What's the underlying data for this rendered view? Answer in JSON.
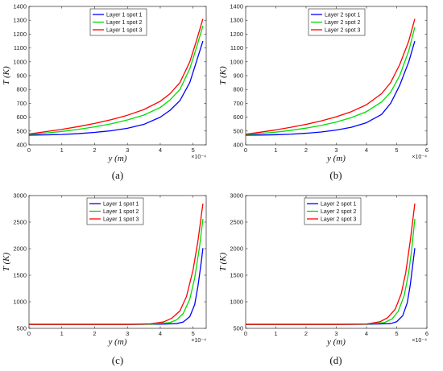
{
  "chart_data": [
    {
      "type": "line",
      "caption": "(a)",
      "xlabel": "y (m)",
      "ylabel": "T (K)",
      "x_multiplier": "×10⁻⁴",
      "xlim": [
        0,
        5.4
      ],
      "ylim": [
        400,
        1400
      ],
      "xticks": [
        0,
        1,
        2,
        3,
        4,
        5
      ],
      "yticks": [
        400,
        500,
        600,
        700,
        800,
        900,
        1000,
        1100,
        1200,
        1300,
        1400
      ],
      "legend_position": "top-center",
      "series": [
        {
          "name": "Layer 1 spot 1",
          "color": "#0000ff",
          "x": [
            0,
            0.5,
            1,
            1.5,
            2,
            2.5,
            3,
            3.5,
            4,
            4.3,
            4.6,
            4.9,
            5.1,
            5.3
          ],
          "y": [
            470,
            472,
            475,
            481,
            490,
            502,
            520,
            548,
            600,
            650,
            720,
            850,
            1000,
            1150
          ]
        },
        {
          "name": "Layer 1 spot 2",
          "color": "#00dd00",
          "x": [
            0,
            0.5,
            1,
            1.5,
            2,
            2.5,
            3,
            3.5,
            4,
            4.3,
            4.6,
            4.9,
            5.1,
            5.3
          ],
          "y": [
            475,
            485,
            497,
            512,
            530,
            552,
            580,
            615,
            670,
            725,
            800,
            950,
            1100,
            1260
          ]
        },
        {
          "name": "Layer 1 spot 3",
          "color": "#ff0000",
          "x": [
            0,
            0.5,
            1,
            1.5,
            2,
            2.5,
            3,
            3.5,
            4,
            4.3,
            4.6,
            4.9,
            5.1,
            5.3
          ],
          "y": [
            478,
            495,
            512,
            532,
            555,
            582,
            614,
            655,
            715,
            770,
            850,
            1000,
            1150,
            1310
          ]
        }
      ]
    },
    {
      "type": "line",
      "caption": "(b)",
      "xlabel": "y (m)",
      "ylabel": "T (K)",
      "x_multiplier": "×10⁻⁴",
      "xlim": [
        0,
        6
      ],
      "ylim": [
        400,
        1400
      ],
      "xticks": [
        0,
        1,
        2,
        3,
        4,
        5,
        6
      ],
      "yticks": [
        400,
        500,
        600,
        700,
        800,
        900,
        1000,
        1100,
        1200,
        1300,
        1400
      ],
      "legend_position": "top-center",
      "series": [
        {
          "name": "Layer 2 spot 1",
          "color": "#0000ff",
          "x": [
            0,
            0.5,
            1,
            1.5,
            2,
            2.5,
            3,
            3.5,
            4,
            4.5,
            4.8,
            5.1,
            5.4,
            5.6
          ],
          "y": [
            470,
            471,
            473,
            477,
            484,
            493,
            507,
            527,
            560,
            620,
            700,
            830,
            1000,
            1150
          ]
        },
        {
          "name": "Layer 2 spot 2",
          "color": "#00dd00",
          "x": [
            0,
            0.5,
            1,
            1.5,
            2,
            2.5,
            3,
            3.5,
            4,
            4.5,
            4.8,
            5.1,
            5.4,
            5.6
          ],
          "y": [
            474,
            482,
            492,
            505,
            521,
            540,
            565,
            597,
            640,
            710,
            780,
            900,
            1080,
            1250
          ]
        },
        {
          "name": "Layer 2 spot 3",
          "color": "#ff0000",
          "x": [
            0,
            0.5,
            1,
            1.5,
            2,
            2.5,
            3,
            3.5,
            4,
            4.5,
            4.8,
            5.1,
            5.4,
            5.6
          ],
          "y": [
            477,
            492,
            508,
            527,
            548,
            573,
            603,
            640,
            690,
            770,
            850,
            980,
            1150,
            1310
          ]
        }
      ]
    },
    {
      "type": "line",
      "caption": "(c)",
      "xlabel": "y (m)",
      "ylabel": "T (K)",
      "x_multiplier": "×10⁻⁴",
      "xlim": [
        0,
        5.4
      ],
      "ylim": [
        500,
        3000
      ],
      "xticks": [
        0,
        1,
        2,
        3,
        4,
        5
      ],
      "yticks": [
        500,
        1000,
        1500,
        2000,
        2500,
        3000
      ],
      "legend_position": "top-center",
      "series": [
        {
          "name": "Layer 1 spot 1",
          "color": "#0000ff",
          "x": [
            0,
            1,
            2,
            3,
            4,
            4.5,
            4.7,
            4.9,
            5.05,
            5.15,
            5.25,
            5.3
          ],
          "y": [
            575,
            575,
            575,
            575,
            578,
            590,
            620,
            720,
            950,
            1300,
            1750,
            2010
          ]
        },
        {
          "name": "Layer 1 spot 2",
          "color": "#00dd00",
          "x": [
            0,
            1,
            2,
            3,
            3.8,
            4.3,
            4.5,
            4.7,
            4.9,
            5.05,
            5.2,
            5.3
          ],
          "y": [
            575,
            575,
            575,
            575,
            580,
            610,
            660,
            780,
            1050,
            1450,
            2050,
            2560
          ]
        },
        {
          "name": "Layer 1 spot 3",
          "color": "#ff0000",
          "x": [
            0,
            1,
            2,
            3,
            3.7,
            4.1,
            4.35,
            4.6,
            4.8,
            5.0,
            5.15,
            5.3
          ],
          "y": [
            575,
            575,
            575,
            575,
            585,
            620,
            690,
            830,
            1100,
            1600,
            2150,
            2850
          ]
        }
      ]
    },
    {
      "type": "line",
      "caption": "(d)",
      "xlabel": "y (m)",
      "ylabel": "T (K)",
      "x_multiplier": "×10⁻⁴",
      "xlim": [
        0,
        6
      ],
      "ylim": [
        500,
        3000
      ],
      "xticks": [
        0,
        1,
        2,
        3,
        4,
        5,
        6
      ],
      "yticks": [
        500,
        1000,
        1500,
        2000,
        2500,
        3000
      ],
      "legend_position": "top-center",
      "series": [
        {
          "name": "Layer 2 spot 1",
          "color": "#0000ff",
          "x": [
            0,
            1,
            2,
            3,
            4,
            4.8,
            5.0,
            5.2,
            5.35,
            5.45,
            5.55,
            5.6
          ],
          "y": [
            575,
            575,
            575,
            575,
            576,
            590,
            625,
            740,
            980,
            1320,
            1780,
            2010
          ]
        },
        {
          "name": "Layer 2 spot 2",
          "color": "#00dd00",
          "x": [
            0,
            1,
            2,
            3,
            4,
            4.6,
            4.85,
            5.05,
            5.25,
            5.4,
            5.5,
            5.6
          ],
          "y": [
            575,
            575,
            575,
            575,
            578,
            610,
            680,
            820,
            1120,
            1560,
            2000,
            2560
          ]
        },
        {
          "name": "Layer 2 spot 3",
          "color": "#ff0000",
          "x": [
            0,
            1,
            2,
            3,
            4,
            4.45,
            4.7,
            4.95,
            5.15,
            5.3,
            5.45,
            5.6
          ],
          "y": [
            575,
            575,
            575,
            575,
            582,
            625,
            700,
            860,
            1150,
            1550,
            2150,
            2850
          ]
        }
      ]
    }
  ]
}
